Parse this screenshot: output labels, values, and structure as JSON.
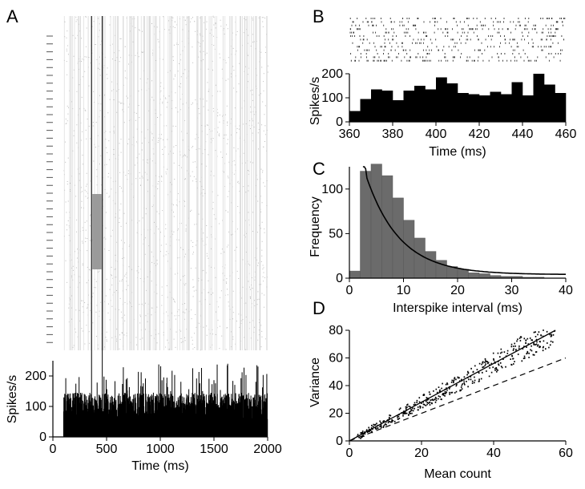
{
  "panels": {
    "A": {
      "letter": "A"
    },
    "B": {
      "letter": "B"
    },
    "C": {
      "letter": "C"
    },
    "D": {
      "letter": "D"
    }
  },
  "chart_data": [
    {
      "id": "A-raster",
      "type": "scatter",
      "description_visible": "spike raster, many trials, time 0-2000 ms",
      "xlim": [
        0,
        2000
      ],
      "markers": {
        "window_ms": [
          360,
          460
        ],
        "highlighted_trials_band": true
      }
    },
    {
      "id": "A-psth",
      "type": "bar",
      "xlabel": "Time (ms)",
      "ylabel": "Spikes/s",
      "xlim": [
        0,
        2000
      ],
      "ylim": [
        0,
        250
      ],
      "xticks": [
        0,
        500,
        1000,
        1500,
        2000
      ],
      "yticks": [
        0,
        100,
        200
      ],
      "onset_ms": 100,
      "typical_rate": 100,
      "peak_rate": 240
    },
    {
      "id": "B-raster",
      "type": "scatter",
      "xlim": [
        360,
        460
      ]
    },
    {
      "id": "B-psth",
      "type": "bar",
      "xlabel": "Time (ms)",
      "ylabel": "Spikes/s",
      "xlim": [
        360,
        460
      ],
      "ylim": [
        0,
        200
      ],
      "xticks": [
        360,
        380,
        400,
        420,
        440,
        460
      ],
      "yticks": [
        0,
        100,
        200
      ],
      "bin_width_ms": 5,
      "values": [
        45,
        95,
        135,
        130,
        90,
        130,
        150,
        135,
        185,
        160,
        120,
        115,
        110,
        125,
        115,
        165,
        110,
        200,
        155,
        120
      ]
    },
    {
      "id": "C-isi",
      "type": "bar",
      "xlabel": "Interspike interval (ms)",
      "ylabel": "Frequency",
      "xlim": [
        0,
        40
      ],
      "ylim": [
        0,
        125
      ],
      "xticks": [
        0,
        10,
        20,
        30,
        40
      ],
      "yticks": [
        0,
        50,
        100
      ],
      "bin_width": 2,
      "values": [
        8,
        120,
        128,
        115,
        90,
        65,
        45,
        30,
        20,
        13,
        10,
        6,
        5,
        3,
        2,
        2,
        1,
        1,
        0,
        0
      ],
      "fit": {
        "type": "exponential",
        "x0": 2.5,
        "amplitude": 122,
        "tau": 6.2
      }
    },
    {
      "id": "D-var",
      "type": "scatter",
      "xlabel": "Mean count",
      "ylabel": "Variance",
      "xlim": [
        0,
        60
      ],
      "ylim": [
        0,
        80
      ],
      "xticks": [
        0,
        20,
        40,
        60
      ],
      "yticks": [
        0,
        20,
        40,
        60,
        80
      ],
      "slope_solid": 1.4,
      "slope_dashed": 1.0,
      "n_points": 420
    }
  ]
}
